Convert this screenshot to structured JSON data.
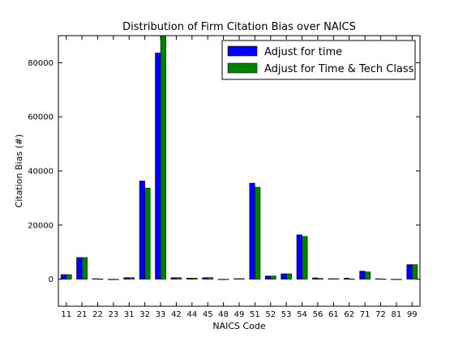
{
  "chart_data": {
    "type": "bar",
    "title": "Distribution of Firm Citation Bias over NAICS",
    "xlabel": "NAICS Code",
    "ylabel": "Citation Bias (#)",
    "ylim": [
      -10000,
      90000
    ],
    "yticks": [
      0,
      20000,
      40000,
      60000,
      80000
    ],
    "legend_position": "top-right",
    "grid": false,
    "categories": [
      "11",
      "21",
      "22",
      "23",
      "31",
      "32",
      "33",
      "42",
      "44",
      "45",
      "48",
      "49",
      "51",
      "52",
      "53",
      "54",
      "56",
      "61",
      "62",
      "71",
      "72",
      "81",
      "99"
    ],
    "series": [
      {
        "name": "Adjust for time",
        "color": "#0000ff",
        "values": [
          1700,
          8000,
          200,
          -200,
          600,
          36300,
          83600,
          600,
          400,
          600,
          -100,
          200,
          35500,
          1200,
          2000,
          16400,
          500,
          200,
          400,
          3000,
          200,
          0,
          5400
        ]
      },
      {
        "name": "Adjust for Time & Tech Class",
        "color": "#008000",
        "values": [
          1700,
          8000,
          100,
          -200,
          600,
          33700,
          90000,
          600,
          400,
          600,
          -100,
          200,
          34000,
          1200,
          2000,
          15800,
          300,
          200,
          100,
          2700,
          100,
          -100,
          5400
        ]
      }
    ]
  }
}
